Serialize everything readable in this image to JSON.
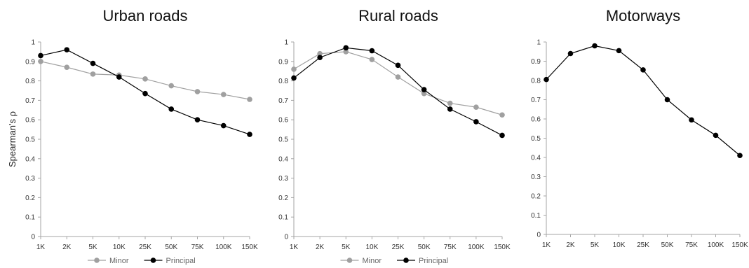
{
  "colors": {
    "minor": "#a0a0a0",
    "principal": "#000000",
    "axis": "#a6a6a6"
  },
  "chart_data": [
    {
      "type": "line",
      "title": "Urban roads",
      "ylabel": "Spearman's ρ",
      "categories": [
        "1K",
        "2K",
        "5K",
        "10K",
        "25K",
        "50K",
        "75K",
        "100K",
        "150K"
      ],
      "y_ticks": [
        "0",
        "0.1",
        "0.2",
        "0.3",
        "0.4",
        "0.5",
        "0.6",
        "0.7",
        "0.8",
        "0.9",
        "1"
      ],
      "ylim": [
        0,
        1
      ],
      "grid": false,
      "legend_position": "bottom",
      "series": [
        {
          "name": "Minor",
          "color": "#a0a0a0",
          "values": [
            0.9,
            0.87,
            0.835,
            0.83,
            0.81,
            0.775,
            0.745,
            0.73,
            0.705
          ]
        },
        {
          "name": "Principal",
          "color": "#000000",
          "values": [
            0.93,
            0.96,
            0.89,
            0.82,
            0.735,
            0.655,
            0.6,
            0.57,
            0.525
          ]
        }
      ]
    },
    {
      "type": "line",
      "title": "Rural roads",
      "ylabel": "",
      "categories": [
        "1K",
        "2K",
        "5K",
        "10K",
        "25K",
        "50K",
        "75K",
        "100K",
        "150K"
      ],
      "y_ticks": [
        "0",
        "0.1",
        "0.2",
        "0.3",
        "0.4",
        "0.5",
        "0.6",
        "0.7",
        "0.8",
        "0.9",
        "1"
      ],
      "ylim": [
        0,
        1
      ],
      "grid": false,
      "legend_position": "bottom",
      "series": [
        {
          "name": "Minor",
          "color": "#a0a0a0",
          "values": [
            0.86,
            0.94,
            0.95,
            0.91,
            0.82,
            0.735,
            0.685,
            0.665,
            0.625
          ]
        },
        {
          "name": "Principal",
          "color": "#000000",
          "values": [
            0.815,
            0.92,
            0.97,
            0.955,
            0.88,
            0.755,
            0.655,
            0.59,
            0.52
          ]
        }
      ]
    },
    {
      "type": "line",
      "title": "Motorways",
      "ylabel": "",
      "categories": [
        "1K",
        "2K",
        "5K",
        "10K",
        "25K",
        "50K",
        "75K",
        "100K",
        "150K"
      ],
      "y_ticks": [
        "0",
        "0.1",
        "0.2",
        "0.3",
        "0.4",
        "0.5",
        "0.6",
        "0.7",
        "0.8",
        "0.9",
        "1"
      ],
      "ylim": [
        0,
        1
      ],
      "grid": false,
      "legend_position": "none",
      "series": [
        {
          "name": "",
          "color": "#000000",
          "values": [
            0.805,
            0.94,
            0.98,
            0.955,
            0.855,
            0.7,
            0.595,
            0.515,
            0.41
          ]
        }
      ]
    }
  ]
}
